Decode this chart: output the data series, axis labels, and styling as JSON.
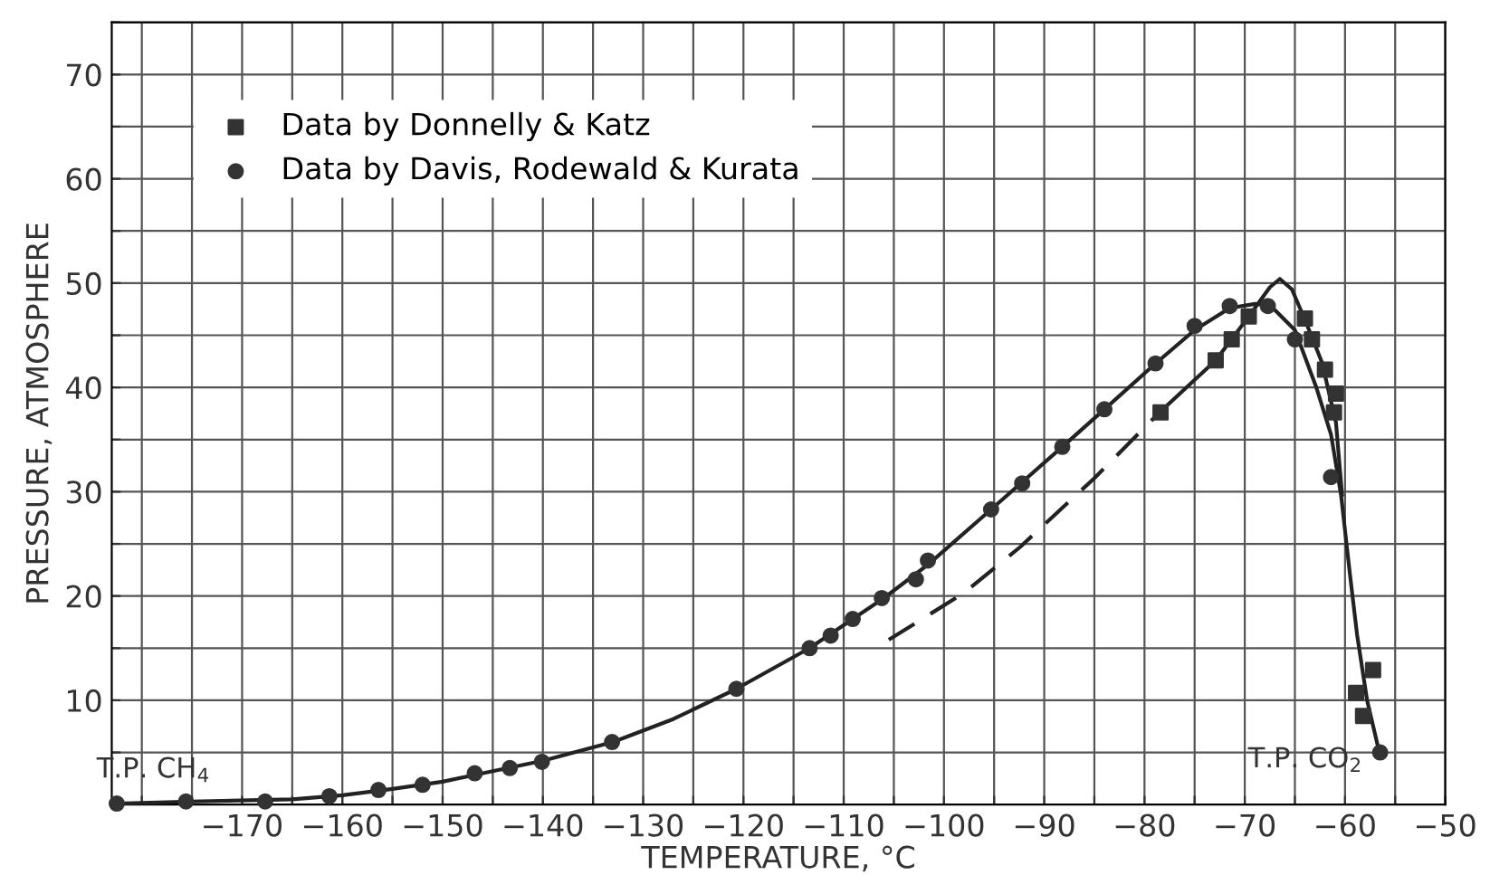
{
  "chart_data": {
    "type": "scatter",
    "xlabel": "TEMPERATURE, °C",
    "ylabel": "PRESSURE, ATMOSPHERE",
    "xlim": [
      -183,
      -50
    ],
    "ylim": [
      0,
      75
    ],
    "xticks": [
      {
        "value": -180,
        "label": null
      },
      {
        "value": -175,
        "label": null
      },
      -170,
      {
        "value": -165,
        "label": null
      },
      -160,
      {
        "value": -155,
        "label": null
      },
      -150,
      {
        "value": -145,
        "label": null
      },
      -140,
      {
        "value": -135,
        "label": null
      },
      -130,
      {
        "value": -125,
        "label": null
      },
      -120,
      {
        "value": -115,
        "label": null
      },
      -110,
      {
        "value": -105,
        "label": null
      },
      -100,
      {
        "value": -95,
        "label": null
      },
      -90,
      {
        "value": -85,
        "label": null
      },
      -80,
      {
        "value": -75,
        "label": null
      },
      -70,
      {
        "value": -65,
        "label": null
      },
      -60,
      {
        "value": -55,
        "label": null
      },
      -50
    ],
    "yticks": [
      {
        "value": 0,
        "label": null
      },
      {
        "value": 5,
        "label": null
      },
      10,
      {
        "value": 15,
        "label": null
      },
      20,
      {
        "value": 25,
        "label": null
      },
      30,
      {
        "value": 35,
        "label": null
      },
      40,
      {
        "value": 45,
        "label": null
      },
      50,
      {
        "value": 55,
        "label": null
      },
      60,
      {
        "value": 65,
        "label": null
      },
      70,
      {
        "value": 75,
        "label": null
      }
    ],
    "grid": true,
    "legend": "top left",
    "series": [
      {
        "name": "Data by Donnelly & Katz",
        "marker": "square",
        "color": "#333333",
        "x": [
          -78.4,
          -72.9,
          -71.3,
          -69.6,
          -64.0,
          -63.3,
          -62.0,
          -60.9,
          -61.1,
          -58.9,
          -57.2,
          -58.2
        ],
        "values": [
          37.6,
          42.6,
          44.6,
          46.8,
          46.6,
          44.6,
          41.7,
          39.4,
          37.6,
          10.7,
          12.9,
          8.5
        ]
      },
      {
        "name": "Data by Davis, Rodewald & Kurata",
        "marker": "circle",
        "color": "#333333",
        "x": [
          -182.5,
          -175.6,
          -167.7,
          -161.3,
          -156.4,
          -152.0,
          -146.8,
          -143.3,
          -140.1,
          -133.1,
          -120.7,
          -113.4,
          -111.3,
          -109.1,
          -106.2,
          -102.8,
          -101.6,
          -95.3,
          -92.2,
          -88.2,
          -84.0,
          -78.9,
          -75.0,
          -71.5,
          -67.7,
          -65.0,
          -61.4,
          -56.5
        ],
        "values": [
          0.1,
          0.3,
          0.3,
          0.8,
          1.4,
          1.9,
          3.0,
          3.5,
          4.1,
          6.0,
          11.1,
          15.0,
          16.2,
          17.8,
          19.8,
          21.6,
          23.4,
          28.3,
          30.8,
          34.3,
          37.9,
          42.3,
          45.9,
          47.8,
          47.8,
          44.6,
          31.4,
          5.0
        ]
      },
      {
        "type": "line",
        "color": "#222222",
        "marker": "none",
        "line_style": "solid",
        "x": [
          -182.5,
          -175,
          -165,
          -160,
          -155,
          -150,
          -145,
          -140,
          -133,
          -127,
          -120.7,
          -113.4,
          -106,
          -101.6,
          -95.3,
          -88.2,
          -84,
          -79,
          -75,
          -71.5,
          -69,
          -67.5,
          -65,
          -62.9,
          -61.4,
          -60.4,
          -59.5,
          -58.8,
          -57.8,
          -56.6
        ],
        "values": [
          0.1,
          0.3,
          0.5,
          0.9,
          1.5,
          2.2,
          3.2,
          4.2,
          6.0,
          8.2,
          11.1,
          15.0,
          19.8,
          23.0,
          28.3,
          34.3,
          37.9,
          42.2,
          45.5,
          47.6,
          48.0,
          47.9,
          45.5,
          40.1,
          35.5,
          29.7,
          22,
          16.3,
          10,
          5.1
        ]
      },
      {
        "type": "line",
        "color": "#222222",
        "marker": "none",
        "line_style": "dashed",
        "x": [
          -105.5,
          -98,
          -92.4,
          -85,
          -78.5
        ],
        "values": [
          15.8,
          20.3,
          24.7,
          31.3,
          37.6
        ]
      },
      {
        "type": "line",
        "color": "#222222",
        "marker": "none",
        "line_style": "solid",
        "x": [
          -78.5,
          -72.9,
          -69.6,
          -67.5,
          -66.5,
          -65.3,
          -64,
          -62.3,
          -60.9,
          -60.3
        ],
        "values": [
          37.6,
          42.6,
          46.8,
          49.6,
          50.4,
          49.4,
          46.5,
          42.4,
          36.6,
          29.7
        ]
      }
    ],
    "annotations": [
      {
        "text": "T.P. CH$_{4}$",
        "x": -182.5,
        "y": 0.1
      },
      {
        "text": "T.P. CO$_{2}$",
        "x": -56.5,
        "y": 5.0
      }
    ]
  }
}
